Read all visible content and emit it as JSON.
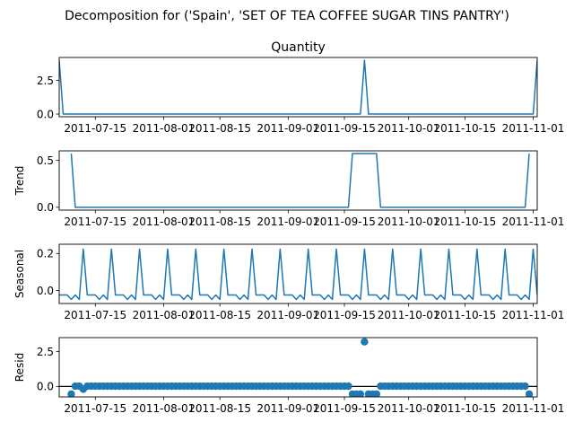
{
  "chart_data": {
    "type": "line",
    "suptitle": "Decomposition for ('Spain', 'SET OF TEA COFFEE SUGAR TINS PANTRY')",
    "x_start": "2011-07-06",
    "x_end": "2011-11-02",
    "x_ticks": [
      "2011-07-15",
      "2011-08-01",
      "2011-08-15",
      "2011-09-01",
      "2011-09-15",
      "2011-10-01",
      "2011-10-15",
      "2011-11-01"
    ],
    "panels": [
      {
        "key": "observed",
        "title": "Quantity",
        "ylabel": "",
        "kind": "line",
        "ylim": [
          -0.2,
          4.2
        ],
        "yticks": [
          "0.0",
          "2.5"
        ],
        "ytick_values": [
          0,
          2.5
        ],
        "points": [
          {
            "x": "2011-07-06",
            "y": 4
          },
          {
            "x": "2011-07-07",
            "y": 0
          },
          {
            "x": "2011-09-19",
            "y": 0
          },
          {
            "x": "2011-09-20",
            "y": 4
          },
          {
            "x": "2011-09-21",
            "y": 0
          },
          {
            "x": "2011-11-01",
            "y": 0
          },
          {
            "x": "2011-11-02",
            "y": 4
          }
        ]
      },
      {
        "key": "trend",
        "title": "",
        "ylabel": "Trend",
        "kind": "line",
        "ylim": [
          -0.03,
          0.6
        ],
        "yticks": [
          "0.0",
          "0.5"
        ],
        "ytick_values": [
          0,
          0.5
        ],
        "points": [
          {
            "x": "2011-07-09",
            "y": 0.571
          },
          {
            "x": "2011-07-10",
            "y": 0
          },
          {
            "x": "2011-09-16",
            "y": 0
          },
          {
            "x": "2011-09-17",
            "y": 0.571
          },
          {
            "x": "2011-09-23",
            "y": 0.571
          },
          {
            "x": "2011-09-24",
            "y": 0
          },
          {
            "x": "2011-10-30",
            "y": 0
          },
          {
            "x": "2011-10-31",
            "y": 0.571
          }
        ]
      },
      {
        "key": "seasonal",
        "title": "",
        "ylabel": "Seasonal",
        "kind": "line",
        "ylim": [
          -0.07,
          0.25
        ],
        "yticks": [
          "0.0",
          "0.2"
        ],
        "ytick_values": [
          0,
          0.2
        ],
        "season_start": "2011-07-06",
        "season_end": "2011-11-02",
        "season_pattern": [
          -0.024,
          -0.024,
          -0.024,
          -0.048,
          -0.024,
          -0.048,
          0.224
        ]
      },
      {
        "key": "resid",
        "title": "",
        "ylabel": "Resid",
        "kind": "scatter",
        "baseline": 0,
        "ylim": [
          -0.75,
          3.5
        ],
        "yticks": [
          "0.0",
          "2.5"
        ],
        "ytick_values": [
          0,
          2.5
        ],
        "resid_start": "2011-07-09",
        "resid_end": "2011-10-31",
        "resid_default": 0.02,
        "resid_overrides": [
          {
            "x": "2011-07-09",
            "y": -0.55
          },
          {
            "x": "2011-07-12",
            "y": -0.2
          },
          {
            "x": "2011-09-17",
            "y": -0.55
          },
          {
            "x": "2011-09-18",
            "y": -0.55
          },
          {
            "x": "2011-09-19",
            "y": -0.55
          },
          {
            "x": "2011-09-20",
            "y": 3.2
          },
          {
            "x": "2011-09-21",
            "y": -0.55
          },
          {
            "x": "2011-09-22",
            "y": -0.55
          },
          {
            "x": "2011-09-23",
            "y": -0.55
          },
          {
            "x": "2011-10-31",
            "y": -0.55
          }
        ]
      }
    ],
    "colors": {
      "series": "#1f77b4",
      "baseline": "#000000"
    }
  }
}
